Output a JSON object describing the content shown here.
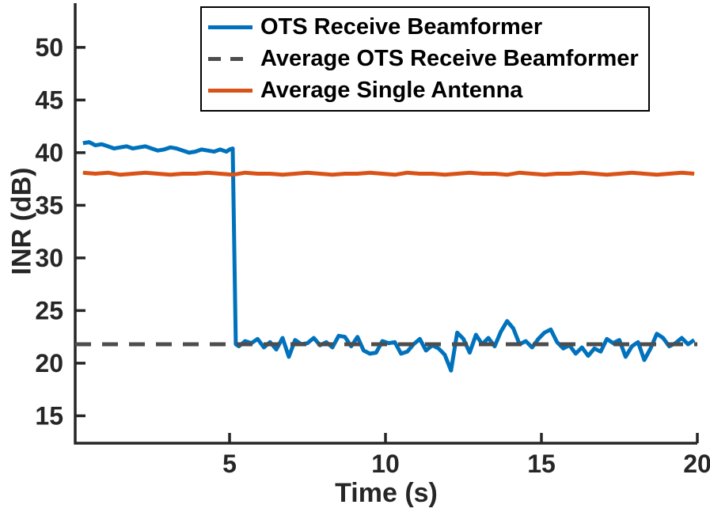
{
  "chart_data": {
    "type": "line",
    "title": "",
    "xlabel": "Time (s)",
    "ylabel": "INR (dB)",
    "xlim": [
      0.05,
      20
    ],
    "ylim": [
      12.4,
      54.2
    ],
    "xticks": [
      5,
      10,
      15,
      20
    ],
    "yticks": [
      15,
      20,
      25,
      30,
      35,
      40,
      45,
      50
    ],
    "grid": false,
    "axis_color": "#262626",
    "background": "#ffffff",
    "legend": {
      "position": "top-inside",
      "border": "#000000"
    },
    "series": [
      {
        "name": "OTS Receive Beamformer",
        "color": "#0072BD",
        "style": "solid",
        "width": 5,
        "x": [
          0.3,
          0.5,
          0.7,
          0.9,
          1.1,
          1.3,
          1.5,
          1.7,
          1.9,
          2.1,
          2.3,
          2.5,
          2.7,
          2.9,
          3.1,
          3.3,
          3.5,
          3.7,
          3.9,
          4.1,
          4.3,
          4.5,
          4.7,
          4.9,
          5.0,
          5.1,
          5.2,
          5.3,
          5.5,
          5.7,
          5.9,
          6.1,
          6.3,
          6.5,
          6.7,
          6.9,
          7.1,
          7.3,
          7.5,
          7.7,
          7.9,
          8.1,
          8.3,
          8.5,
          8.7,
          8.9,
          9.1,
          9.3,
          9.5,
          9.7,
          9.9,
          10.1,
          10.3,
          10.5,
          10.7,
          10.9,
          11.1,
          11.3,
          11.5,
          11.7,
          11.9,
          12.1,
          12.3,
          12.5,
          12.7,
          12.9,
          13.1,
          13.3,
          13.5,
          13.7,
          13.9,
          14.1,
          14.3,
          14.5,
          14.7,
          14.9,
          15.1,
          15.3,
          15.5,
          15.7,
          15.9,
          16.1,
          16.3,
          16.5,
          16.7,
          16.9,
          17.1,
          17.3,
          17.5,
          17.7,
          17.9,
          18.1,
          18.3,
          18.5,
          18.7,
          18.9,
          19.1,
          19.3,
          19.5,
          19.7,
          19.9
        ],
        "y": [
          40.9,
          41.0,
          40.7,
          40.8,
          40.6,
          40.4,
          40.5,
          40.6,
          40.4,
          40.5,
          40.6,
          40.4,
          40.2,
          40.3,
          40.5,
          40.4,
          40.2,
          40.0,
          40.1,
          40.3,
          40.2,
          40.1,
          40.3,
          40.1,
          40.3,
          40.4,
          21.8,
          21.6,
          22.1,
          21.9,
          22.3,
          21.5,
          22.0,
          21.3,
          22.4,
          20.6,
          22.2,
          21.8,
          21.9,
          22.4,
          21.7,
          22.0,
          21.5,
          22.6,
          22.5,
          21.6,
          22.5,
          21.2,
          20.9,
          21.0,
          22.1,
          21.9,
          22.0,
          20.9,
          21.1,
          21.8,
          22.3,
          21.2,
          21.7,
          21.4,
          20.8,
          19.3,
          22.9,
          22.3,
          21.0,
          22.7,
          21.8,
          22.4,
          21.6,
          23.0,
          24.0,
          23.3,
          21.8,
          22.1,
          21.5,
          22.3,
          22.9,
          23.2,
          22.0,
          21.4,
          21.7,
          20.9,
          21.5,
          20.7,
          21.4,
          21.1,
          22.3,
          21.9,
          22.2,
          20.6,
          21.6,
          22.0,
          20.3,
          21.4,
          22.8,
          22.4,
          21.6,
          21.9,
          22.4,
          21.8,
          22.2
        ]
      },
      {
        "name": "Average OTS Receive Beamformer",
        "color": "#4D4D4D",
        "style": "dashed",
        "width": 5,
        "x": [
          0.05,
          20
        ],
        "y": [
          21.8,
          21.8
        ]
      },
      {
        "name": "Average Single Antenna",
        "color": "#D95319",
        "style": "solid",
        "width": 5,
        "x": [
          0.3,
          0.7,
          1.1,
          1.5,
          1.9,
          2.3,
          2.7,
          3.1,
          3.5,
          3.9,
          4.3,
          4.7,
          5.1,
          5.5,
          5.9,
          6.3,
          6.7,
          7.1,
          7.5,
          7.9,
          8.3,
          8.7,
          9.1,
          9.5,
          9.9,
          10.3,
          10.7,
          11.1,
          11.5,
          11.9,
          12.3,
          12.7,
          13.1,
          13.5,
          13.9,
          14.3,
          14.7,
          15.1,
          15.5,
          15.9,
          16.3,
          16.7,
          17.1,
          17.5,
          17.9,
          18.3,
          18.7,
          19.1,
          19.5,
          19.9
        ],
        "y": [
          38.1,
          38.0,
          38.1,
          37.9,
          38.0,
          38.1,
          38.0,
          37.9,
          38.0,
          38.0,
          38.1,
          38.0,
          37.9,
          38.1,
          38.0,
          38.0,
          37.9,
          38.0,
          38.1,
          38.0,
          37.9,
          38.0,
          38.0,
          38.1,
          38.0,
          37.9,
          38.1,
          38.0,
          38.0,
          37.9,
          38.0,
          38.1,
          38.0,
          38.0,
          37.9,
          38.1,
          38.0,
          37.9,
          38.0,
          38.0,
          38.1,
          38.0,
          37.9,
          38.0,
          38.1,
          38.0,
          37.9,
          38.0,
          38.1,
          38.0
        ]
      }
    ]
  }
}
